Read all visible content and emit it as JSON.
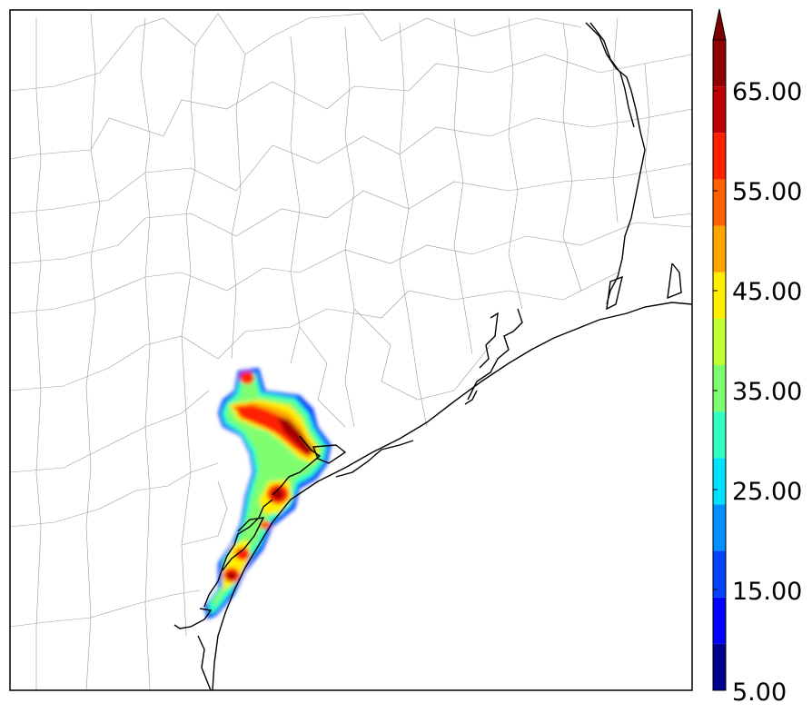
{
  "colorbar": {
    "tick_labels": [
      "5.00",
      "15.00",
      "25.00",
      "35.00",
      "45.00",
      "55.00",
      "65.00"
    ],
    "bins": [
      {
        "min": 5,
        "max": 10,
        "color": "#00008f"
      },
      {
        "min": 10,
        "max": 15,
        "color": "#0000ff"
      },
      {
        "min": 15,
        "max": 20,
        "color": "#0040ff"
      },
      {
        "min": 20,
        "max": 25,
        "color": "#0090ff"
      },
      {
        "min": 25,
        "max": 30,
        "color": "#00e0ff"
      },
      {
        "min": 30,
        "max": 35,
        "color": "#30ffc0"
      },
      {
        "min": 35,
        "max": 40,
        "color": "#7fff70"
      },
      {
        "min": 40,
        "max": 45,
        "color": "#c0ff30"
      },
      {
        "min": 45,
        "max": 50,
        "color": "#ffee00"
      },
      {
        "min": 50,
        "max": 55,
        "color": "#ffa500"
      },
      {
        "min": 55,
        "max": 60,
        "color": "#ff6000"
      },
      {
        "min": 60,
        "max": 65,
        "color": "#ff2000"
      },
      {
        "min": 65,
        "max": 70,
        "color": "#c00000"
      },
      {
        "min": 70,
        "max": 75,
        "color": "#8f0000"
      }
    ],
    "extend": "max",
    "extend_color": "#800000"
  },
  "map": {
    "region": "Texas Gulf Coast counties",
    "field_colors": {
      "outer": "#0040ff",
      "cyan": "#30ffc0",
      "green": "#7fff70",
      "yellow": "#ffee00",
      "orange": "#ffa500",
      "red": "#ff2000",
      "darkred": "#a00000"
    }
  }
}
